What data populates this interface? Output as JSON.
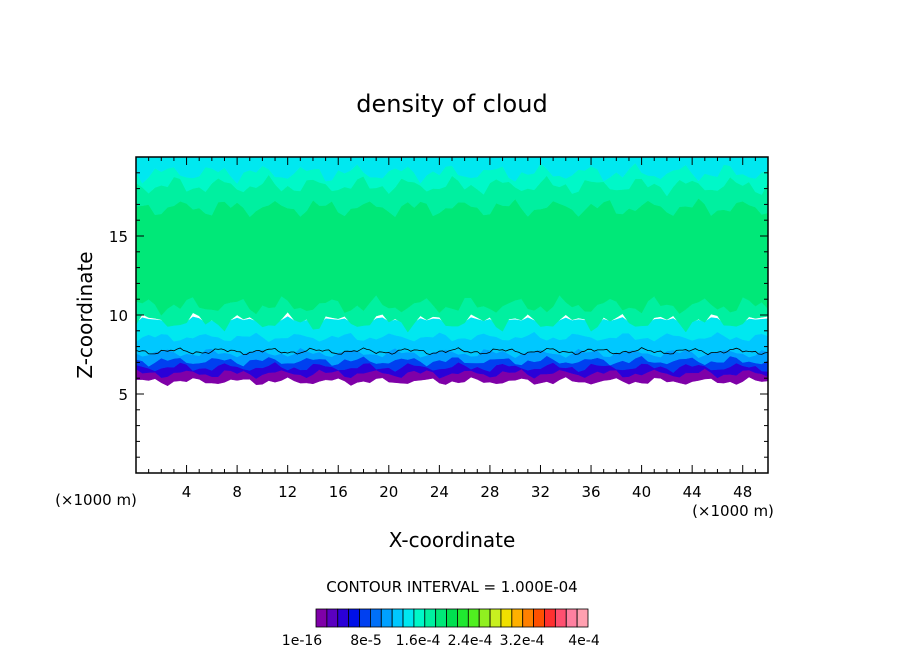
{
  "chart_data": {
    "type": "heatmap",
    "title": "density of cloud",
    "xlabel": "X-coordinate",
    "ylabel": "Z-coordinate",
    "x_unit_left": "(×1000 m)",
    "x_unit_right": "(×1000 m)",
    "xlim": [
      0,
      50
    ],
    "ylim": [
      0,
      20
    ],
    "xticks": [
      4,
      8,
      12,
      16,
      20,
      24,
      28,
      32,
      36,
      40,
      44,
      48
    ],
    "yticks": [
      5,
      10,
      15
    ],
    "grid": false,
    "contour_interval_text": "CONTOUR INTERVAL = 1.000E-04",
    "colorbar": {
      "colors": [
        "#7f00a8",
        "#5a00c0",
        "#2a00d8",
        "#0010e8",
        "#0040f0",
        "#0070f8",
        "#00a0ff",
        "#00c8ff",
        "#00e8f0",
        "#00f8c8",
        "#00f0a0",
        "#00e878",
        "#00e050",
        "#20e830",
        "#50f020",
        "#90f020",
        "#c8f020",
        "#f0e000",
        "#ffb000",
        "#ff8000",
        "#ff5000",
        "#ff3030",
        "#ff5070",
        "#ff80a0",
        "#ffa0b0"
      ],
      "labels": [
        "1e-16",
        "8e-5",
        "1.6e-4",
        "2.4e-4",
        "3.2e-4",
        "4e-4"
      ]
    },
    "layers": [
      {
        "z_bottom": 5.8,
        "z_top": 6.3,
        "color": "#7f00a8"
      },
      {
        "z_bottom": 6.3,
        "z_top": 6.7,
        "color": "#2a00d8"
      },
      {
        "z_bottom": 6.7,
        "z_top": 7.1,
        "color": "#0040f0"
      },
      {
        "z_bottom": 7.1,
        "z_top": 7.6,
        "color": "#00a0ff"
      },
      {
        "z_bottom": 7.6,
        "z_top": 8.6,
        "color": "#00c8ff"
      },
      {
        "z_bottom": 8.6,
        "z_top": 9.6,
        "color": "#00e8f0"
      },
      {
        "z_bottom": 9.6,
        "z_top": 10.6,
        "color": "#00f0a0"
      },
      {
        "z_bottom": 10.6,
        "z_top": 16.8,
        "color": "#00e878"
      },
      {
        "z_bottom": 16.8,
        "z_top": 18.2,
        "color": "#00f0a0"
      },
      {
        "z_bottom": 18.2,
        "z_top": 19.0,
        "color": "#00f8c8"
      },
      {
        "z_bottom": 19.0,
        "z_top": 20.0,
        "color": "#00e8f0"
      }
    ],
    "contour_line_z": 7.7
  }
}
